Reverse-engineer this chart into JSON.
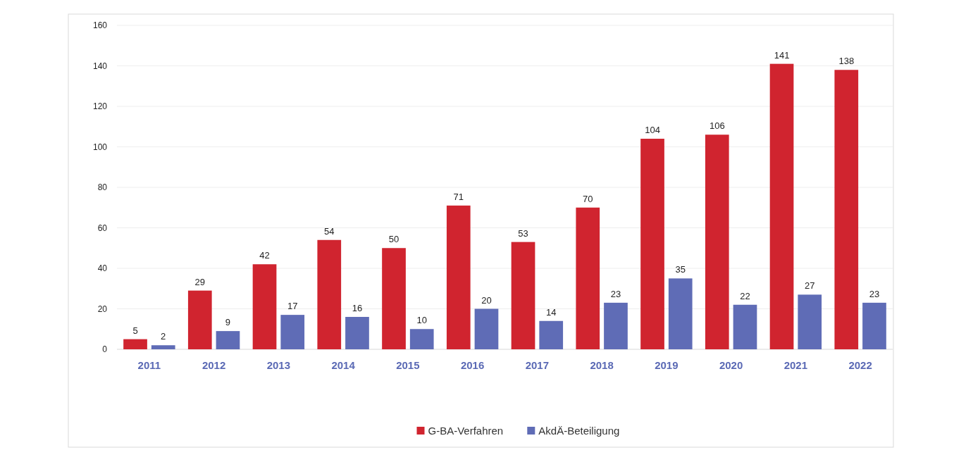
{
  "chart_data": {
    "type": "bar",
    "categories": [
      "2011",
      "2012",
      "2013",
      "2014",
      "2015",
      "2016",
      "2017",
      "2018",
      "2019",
      "2020",
      "2021",
      "2022"
    ],
    "series": [
      {
        "name": "G-BA-Verfahren",
        "color": "#d0242f",
        "values": [
          5,
          29,
          42,
          54,
          50,
          71,
          53,
          70,
          104,
          106,
          141,
          138
        ]
      },
      {
        "name": "AkdÄ-Beteiligung",
        "color": "#5f6cb6",
        "values": [
          2,
          9,
          17,
          16,
          10,
          20,
          14,
          23,
          35,
          22,
          27,
          23
        ]
      }
    ],
    "ylim": [
      0,
      160
    ],
    "yticks": [
      0,
      20,
      40,
      60,
      80,
      100,
      120,
      140,
      160
    ],
    "grid": "y",
    "legend": "bottom",
    "data_labels": true
  }
}
